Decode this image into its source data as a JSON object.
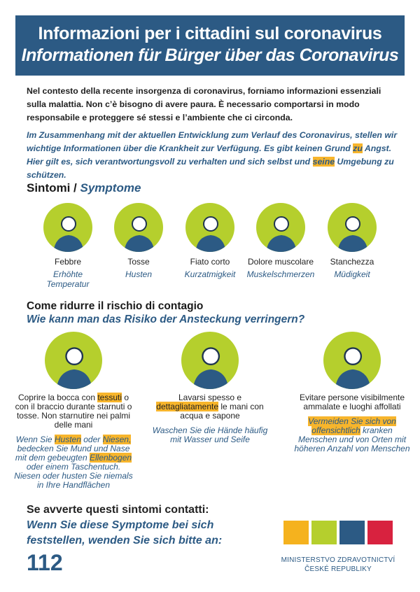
{
  "header": {
    "title_it": "Informazioni per i cittadini sul coronavirus",
    "title_de": "Informationen für Bürger über das Coronavirus"
  },
  "intro": {
    "it": [
      {
        "t": "Nel contesto della recente insorgenza di coronavirus, forniamo informazioni essenziali sulla malattia. Non c’è bisogno di avere paura. È necessario comportarsi in modo responsabile e proteggere sé stessi e l’ambiente che ci circonda."
      }
    ],
    "de": [
      {
        "t": "Im Zusammenhang mit der aktuellen Entwicklung zum Verlauf des Coronavirus, stellen wir wichtige Informationen über die Krankheit zur Verfügung. Es gibt keinen Grund "
      },
      {
        "t": "zu",
        "h": true
      },
      {
        "t": " Angst. Hier gilt es, sich verantwortungsvoll zu verhalten und sich selbst und "
      },
      {
        "t": "seine",
        "h": true
      },
      {
        "t": " Umgebung zu schützen."
      }
    ]
  },
  "symptoms": {
    "heading_it": "Sintomi / ",
    "heading_de": "Symptome",
    "items": [
      {
        "it": "Febbre",
        "de": "Erhöhte Temperatur",
        "icon": "thermometer-person-icon"
      },
      {
        "it": "Tosse",
        "de": "Husten",
        "icon": "coughing-person-icon"
      },
      {
        "it": "Fiato corto",
        "de": "Kurzatmigkeit",
        "icon": "short-breath-icon"
      },
      {
        "it": "Dolore muscolare",
        "de": "Muskelschmerzen",
        "icon": "muscle-pain-icon"
      },
      {
        "it": "Stanchezza",
        "de": "Müdigkeit",
        "icon": "fatigue-icon"
      }
    ]
  },
  "prevention": {
    "heading_it": "Come ridurre il rischio di contagio",
    "heading_de": "Wie kann man das Risiko der Ansteckung verringern?",
    "items": [
      {
        "icon": "tissue-sneeze-icon",
        "it": [
          {
            "t": "Coprire la bocca con "
          },
          {
            "t": "tessuti",
            "h": true
          },
          {
            "t": " o con il braccio durante starnuti o tosse. Non starnutire nei palmi delle mani"
          }
        ],
        "de": [
          {
            "t": "Wenn Sie "
          },
          {
            "t": "Husten",
            "h": true
          },
          {
            "t": " oder "
          },
          {
            "t": "Niesen,",
            "h": true
          },
          {
            "t": " bedecken Sie Mund und Nase mit dem gebeugten "
          },
          {
            "t": "Ellenbogen",
            "h": true
          },
          {
            "t": " oder einem Taschentuch. Niesen oder husten Sie niemals in Ihre Handflächen"
          }
        ]
      },
      {
        "icon": "hand-washing-icon",
        "it": [
          {
            "t": "Lavarsi spesso e "
          },
          {
            "t": "dettagliatamente",
            "h": true
          },
          {
            "t": " le mani con acqua e sapone"
          }
        ],
        "de": [
          {
            "t": "Waschen Sie die Hände häufig mit Wasser und Seife"
          }
        ]
      },
      {
        "icon": "avoid-crowds-icon",
        "it": [
          {
            "t": "Evitare persone visibilmente ammalate e luoghi affollati"
          }
        ],
        "de": [
          {
            "t": "Vermeiden Sie sich von offensichtlich",
            "h": true
          },
          {
            "t": " kranken Menschen und von Orten mit höheren Anzahl von Menschen"
          }
        ]
      }
    ]
  },
  "contact": {
    "it": "Se avverte questi sintomi contatti:",
    "de_line1": "Wenn Sie diese Symptome bei sich",
    "de_line2": "feststellen, wenden Sie sich bitte an:",
    "number": "112"
  },
  "logo": {
    "line1": "MINISTERSTVO ZDRAVOTNICTVÍ",
    "line2": "ČESKÉ REPUBLIKY",
    "colors": [
      "#f5b21e",
      "#b5cf2d",
      "#2c5a84",
      "#d8223f"
    ]
  },
  "colors": {
    "blue": "#2c5a84",
    "lime": "#b5cf2d",
    "highlight": "#f7b52c"
  }
}
